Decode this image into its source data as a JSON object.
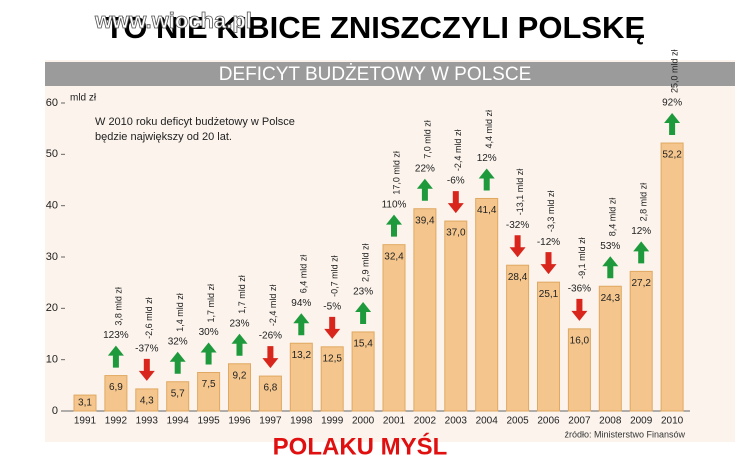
{
  "header": {
    "title": "TO NIE KIBICE  ZNISZCZYLI  POLSKĘ",
    "watermark": "www.wiocha.pl"
  },
  "chart_data": {
    "type": "bar",
    "title": "DEFICYT BUDŻETOWY W POLSCE",
    "y_label": "mld zł",
    "note": [
      "W 2010 roku deficyt budżetowy w Polsce",
      "będzie największy od  20 lat."
    ],
    "source": "źródło: Ministerstwo Finansów",
    "categories": [
      "1991",
      "1992",
      "1993",
      "1994",
      "1995",
      "1996",
      "1997",
      "1998",
      "1999",
      "2000",
      "2001",
      "2002",
      "2003",
      "2004",
      "2005",
      "2006",
      "2007",
      "2008",
      "2009",
      "2010"
    ],
    "values": [
      3.1,
      6.9,
      4.3,
      5.7,
      7.5,
      9.2,
      6.8,
      13.2,
      12.5,
      15.4,
      32.4,
      39.4,
      37.0,
      41.4,
      28.4,
      25.1,
      16.0,
      24.3,
      27.2,
      52.2
    ],
    "value_labels": [
      "3,1",
      "6,9",
      "4,3",
      "5,7",
      "7,5",
      "9,2",
      "6,8",
      "13,2",
      "12,5",
      "15,4",
      "32,4",
      "39,4",
      "37,0",
      "41,4",
      "28,4",
      "25,1",
      "16,0",
      "24,3",
      "27,2",
      "52,2"
    ],
    "changes": [
      null,
      3.8,
      -2.6,
      1.4,
      1.7,
      1.7,
      -2.4,
      6.4,
      -0.7,
      2.9,
      17.0,
      7.0,
      -2.4,
      4.4,
      -13.1,
      -3.3,
      -9.1,
      8.4,
      2.8,
      25.0
    ],
    "change_labels": [
      null,
      "3,8 mld zł",
      "-2,6 mld zł",
      "1,4 mld zł",
      "1,7 mld zł",
      "1,7 mld zł",
      "-2,4 mld zł",
      "6,4 mld zł",
      "-0,7 mld zł",
      "2,9 mld zł",
      "17,0 mld zł",
      "7,0 mld zł",
      "-2,4 mld zł",
      "4,4 mld zł",
      "-13,1 mld zł",
      "-3,3 mld zł",
      "-9,1 mld zł",
      "8,4 mld zł",
      "2,8 mld zł",
      "25,0 mld zł"
    ],
    "percent_changes": [
      null,
      123,
      -37,
      32,
      30,
      23,
      -26,
      94,
      -5,
      23,
      110,
      22,
      -6,
      12,
      -32,
      -12,
      -36,
      53,
      12,
      92
    ],
    "percent_labels": [
      null,
      "123%",
      "-37%",
      "32%",
      "30%",
      "23%",
      "-26%",
      "94%",
      "-5%",
      "23%",
      "110%",
      "22%",
      "-6%",
      "12%",
      "-32%",
      "-12%",
      "-36%",
      "53%",
      "12%",
      "92%"
    ],
    "color": "#f4c68e",
    "up_color": "#1e9a3c",
    "down_color": "#d8261c",
    "ylim": [
      0,
      60
    ],
    "yticks": [
      0,
      10,
      20,
      30,
      40,
      50,
      60
    ],
    "grid": false
  },
  "footer": {
    "slogan": "POLAKU  MYŚL"
  }
}
